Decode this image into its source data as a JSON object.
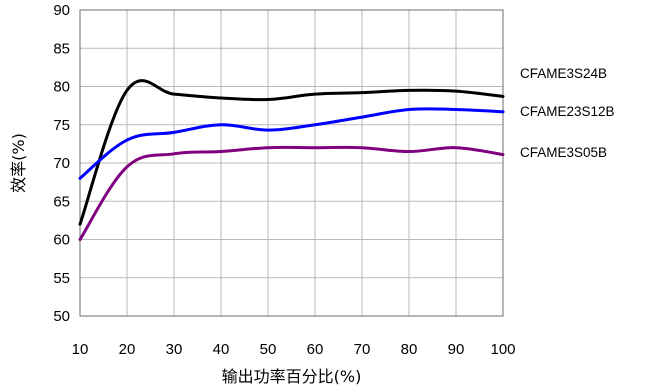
{
  "chart_data": {
    "type": "line",
    "title": "",
    "xlabel": "输出功率百分比(%)",
    "ylabel": "效率(%)",
    "xlim": [
      10,
      100
    ],
    "ylim": [
      50,
      90
    ],
    "grid": true,
    "x_ticks": [
      "10",
      "20",
      "30",
      "40",
      "50",
      "60",
      "70",
      "80",
      "90",
      "100"
    ],
    "y_ticks": [
      "50",
      "55",
      "60",
      "65",
      "70",
      "75",
      "80",
      "85",
      "90"
    ],
    "x": [
      10,
      20,
      30,
      40,
      50,
      60,
      70,
      80,
      90,
      100
    ],
    "series": [
      {
        "name": "CFAME3S24B",
        "color": "#000000",
        "values": [
          62,
          79.5,
          79,
          78.5,
          78.3,
          79,
          79.2,
          79.5,
          79.4,
          78.7
        ]
      },
      {
        "name": "CFAME23S12B",
        "color": "#0000ff",
        "values": [
          68,
          73,
          74,
          75,
          74.3,
          75,
          76,
          77,
          77,
          76.7
        ]
      },
      {
        "name": "CFAME3S05B",
        "color": "#800080",
        "values": [
          60,
          69.5,
          71.2,
          71.5,
          72,
          72,
          72,
          71.5,
          72,
          71.1
        ]
      }
    ]
  }
}
